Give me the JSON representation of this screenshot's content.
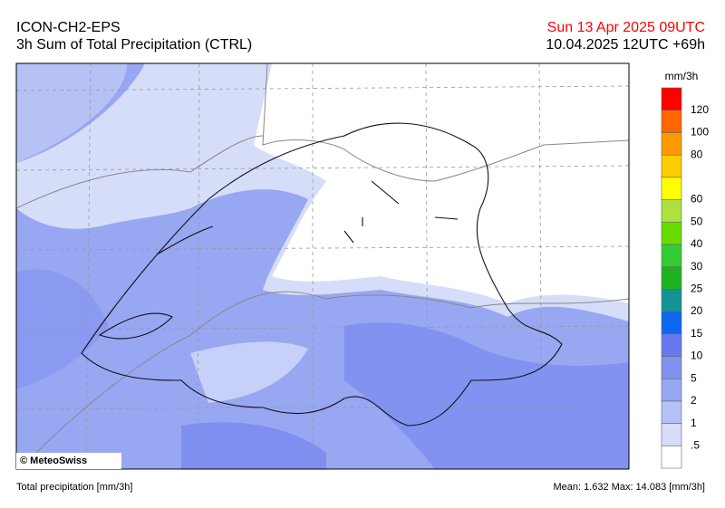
{
  "header": {
    "model": "ICON-CH2-EPS",
    "product": "3h Sum of Total Precipitation (CTRL)",
    "valid_time": "Sun 13 Apr 2025 09UTC",
    "run_time": "10.04.2025 12UTC +69h"
  },
  "map": {
    "credit": "© MeteoSwiss"
  },
  "legend": {
    "unit": "mm/3h",
    "levels": [
      {
        "color": "#ffffff"
      },
      {
        "color": "#d6ddf9",
        "label": ".5"
      },
      {
        "color": "#b6c2f6",
        "label": "1"
      },
      {
        "color": "#98a7f2",
        "label": "2"
      },
      {
        "color": "#8192f0",
        "label": "5"
      },
      {
        "color": "#6878ee",
        "label": "10"
      },
      {
        "color": "#0e66f0",
        "label": "15"
      },
      {
        "color": "#139494",
        "label": "20"
      },
      {
        "color": "#1eb31e",
        "label": "25"
      },
      {
        "color": "#33cc33",
        "label": "30"
      },
      {
        "color": "#66dd00",
        "label": "40"
      },
      {
        "color": "#aee040",
        "label": "50"
      },
      {
        "color": "#ffff00",
        "label": "60"
      },
      {
        "color": "#ffcc00"
      },
      {
        "color": "#ff9900",
        "label": "80"
      },
      {
        "color": "#ff6600",
        "label": "100"
      },
      {
        "color": "#ff0000",
        "label": "120"
      }
    ]
  },
  "footer": {
    "left": "Total precipitation [mm/3h]",
    "right": "Mean:   1.632 Max:  14.083 [mm/3h]"
  }
}
